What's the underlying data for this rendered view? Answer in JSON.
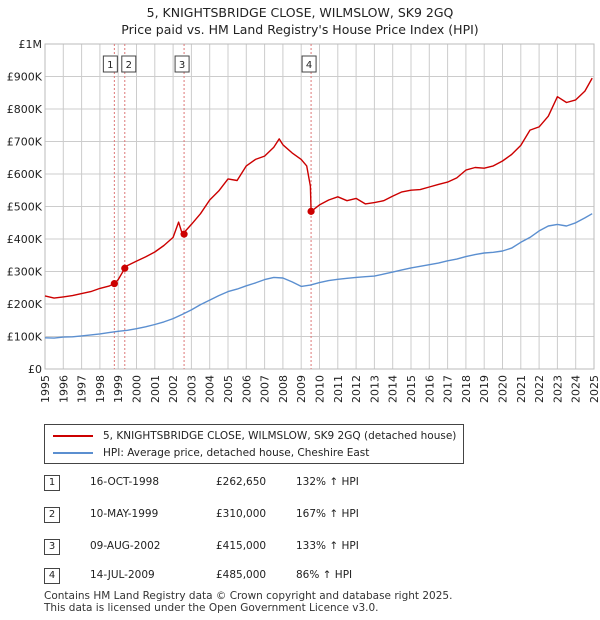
{
  "title_line1": "5, KNIGHTSBRIDGE CLOSE, WILMSLOW, SK9 2GQ",
  "title_line2": "Price paid vs. HM Land Registry's House Price Index (HPI)",
  "colors": {
    "property": "#cc0000",
    "hpi": "#5b8fd0",
    "marker_line": "#dd7777",
    "grid": "#cccccc"
  },
  "legend": {
    "property": "5, KNIGHTSBRIDGE CLOSE, WILMSLOW, SK9 2GQ (detached house)",
    "hpi": "HPI: Average price, detached house, Cheshire East"
  },
  "sales": [
    {
      "num": "1",
      "date": "16-OCT-1998",
      "price": "£262,650",
      "hpi": "132% ↑ HPI"
    },
    {
      "num": "2",
      "date": "10-MAY-1999",
      "price": "£310,000",
      "hpi": "167% ↑ HPI"
    },
    {
      "num": "3",
      "date": "09-AUG-2002",
      "price": "£415,000",
      "hpi": "133% ↑ HPI"
    },
    {
      "num": "4",
      "date": "14-JUL-2009",
      "price": "£485,000",
      "hpi": "86% ↑ HPI"
    }
  ],
  "footer_line1": "Contains HM Land Registry data © Crown copyright and database right 2025.",
  "footer_line2": "This data is licensed under the Open Government Licence v3.0.",
  "chart_data": {
    "type": "line",
    "title": "5, KNIGHTSBRIDGE CLOSE, WILMSLOW, SK9 2GQ — Price paid vs. HM Land Registry's House Price Index (HPI)",
    "xlabel": "",
    "ylabel": "",
    "xlim": [
      1995,
      2025
    ],
    "ylim": [
      0,
      1000000
    ],
    "x_ticks": [
      "1995",
      "1996",
      "1997",
      "1998",
      "1999",
      "2000",
      "2001",
      "2002",
      "2003",
      "2004",
      "2005",
      "2006",
      "2007",
      "2008",
      "2009",
      "2010",
      "2011",
      "2012",
      "2013",
      "2014",
      "2015",
      "2016",
      "2017",
      "2018",
      "2019",
      "2020",
      "2021",
      "2022",
      "2023",
      "2024",
      "2025"
    ],
    "y_ticks": [
      {
        "value": 0,
        "label": "£0"
      },
      {
        "value": 100000,
        "label": "£100K"
      },
      {
        "value": 200000,
        "label": "£200K"
      },
      {
        "value": 300000,
        "label": "£300K"
      },
      {
        "value": 400000,
        "label": "£400K"
      },
      {
        "value": 500000,
        "label": "£500K"
      },
      {
        "value": 600000,
        "label": "£600K"
      },
      {
        "value": 700000,
        "label": "£700K"
      },
      {
        "value": 800000,
        "label": "£800K"
      },
      {
        "value": 900000,
        "label": "£900K"
      },
      {
        "value": 1000000,
        "label": "£1M"
      }
    ],
    "grid": true,
    "series": [
      {
        "name": "5, KNIGHTSBRIDGE CLOSE, WILMSLOW, SK9 2GQ (detached house)",
        "x": [
          1995.0,
          1995.5,
          1996.0,
          1996.5,
          1997.0,
          1997.5,
          1998.0,
          1998.5,
          1998.79,
          1999.0,
          1999.36,
          1999.5,
          2000.0,
          2000.5,
          2001.0,
          2001.5,
          2002.0,
          2002.3,
          2002.5,
          2002.6,
          2003.0,
          2003.5,
          2004.0,
          2004.5,
          2005.0,
          2005.5,
          2006.0,
          2006.5,
          2007.0,
          2007.5,
          2007.8,
          2008.0,
          2008.5,
          2009.0,
          2009.3,
          2009.5,
          2009.54,
          2010.0,
          2010.5,
          2011.0,
          2011.5,
          2012.0,
          2012.5,
          2013.0,
          2013.5,
          2014.0,
          2014.5,
          2015.0,
          2015.5,
          2016.0,
          2016.5,
          2017.0,
          2017.5,
          2018.0,
          2018.5,
          2019.0,
          2019.5,
          2020.0,
          2020.5,
          2021.0,
          2021.5,
          2022.0,
          2022.5,
          2023.0,
          2023.5,
          2024.0,
          2024.5,
          2024.9
        ],
        "y": [
          225000,
          218000,
          222000,
          226000,
          232000,
          238000,
          248000,
          255000,
          262650,
          275000,
          310000,
          318000,
          332000,
          345000,
          360000,
          380000,
          405000,
          452000,
          415000,
          420000,
          445000,
          478000,
          520000,
          548000,
          585000,
          580000,
          625000,
          645000,
          655000,
          682000,
          708000,
          690000,
          665000,
          645000,
          625000,
          562000,
          485000,
          505000,
          520000,
          530000,
          518000,
          525000,
          508000,
          512000,
          518000,
          532000,
          545000,
          550000,
          552000,
          560000,
          568000,
          575000,
          588000,
          612000,
          620000,
          618000,
          625000,
          640000,
          660000,
          688000,
          735000,
          745000,
          778000,
          838000,
          820000,
          828000,
          855000,
          895000
        ]
      },
      {
        "name": "HPI: Average price, detached house, Cheshire East",
        "x": [
          1995.0,
          1995.5,
          1996.0,
          1996.5,
          1997.0,
          1997.5,
          1998.0,
          1998.5,
          1999.0,
          1999.5,
          2000.0,
          2000.5,
          2001.0,
          2001.5,
          2002.0,
          2002.5,
          2003.0,
          2003.5,
          2004.0,
          2004.5,
          2005.0,
          2005.5,
          2006.0,
          2006.5,
          2007.0,
          2007.5,
          2008.0,
          2008.5,
          2009.0,
          2009.5,
          2010.0,
          2010.5,
          2011.0,
          2011.5,
          2012.0,
          2012.5,
          2013.0,
          2013.5,
          2014.0,
          2014.5,
          2015.0,
          2015.5,
          2016.0,
          2016.5,
          2017.0,
          2017.5,
          2018.0,
          2018.5,
          2019.0,
          2019.5,
          2020.0,
          2020.5,
          2021.0,
          2021.5,
          2022.0,
          2022.5,
          2023.0,
          2023.5,
          2024.0,
          2024.5,
          2024.9
        ],
        "y": [
          96000,
          95000,
          98000,
          99000,
          102000,
          105000,
          108000,
          112000,
          116000,
          119000,
          124000,
          130000,
          137000,
          145000,
          155000,
          168000,
          182000,
          198000,
          212000,
          226000,
          238000,
          246000,
          256000,
          265000,
          275000,
          282000,
          280000,
          268000,
          254000,
          258000,
          266000,
          272000,
          276000,
          279000,
          282000,
          284000,
          286000,
          292000,
          298000,
          305000,
          311000,
          316000,
          321000,
          326000,
          333000,
          338000,
          346000,
          352000,
          357000,
          359000,
          363000,
          372000,
          390000,
          405000,
          425000,
          440000,
          445000,
          440000,
          450000,
          465000,
          478000
        ]
      }
    ],
    "sales_markers": [
      {
        "label": "1",
        "x": 1998.79,
        "y": 262650
      },
      {
        "label": "2",
        "x": 1999.36,
        "y": 310000
      },
      {
        "label": "3",
        "x": 2002.6,
        "y": 415000
      },
      {
        "label": "4",
        "x": 2009.54,
        "y": 485000
      }
    ]
  }
}
